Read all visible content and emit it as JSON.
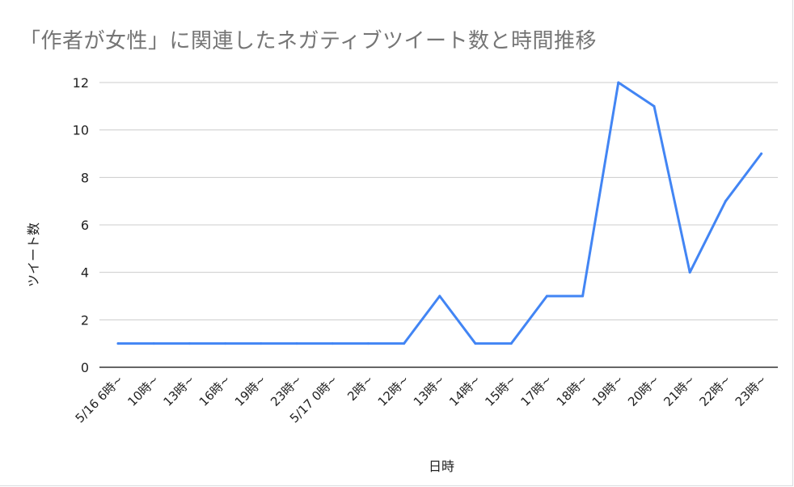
{
  "chart_data": {
    "type": "line",
    "title": "「作者が女性」に関連したネガティブツイート数と時間推移",
    "xlabel": "日時",
    "ylabel": "ツイート数",
    "ylim": [
      0,
      12
    ],
    "yticks": [
      "0",
      "2",
      "4",
      "6",
      "8",
      "10",
      "12"
    ],
    "grid": true,
    "categories": [
      "5/16 6時~",
      "10時~",
      "13時~",
      "16時~",
      "19時~",
      "23時~",
      "5/17 0時~",
      "2時~",
      "12時~",
      "13時~",
      "14時~",
      "15時~",
      "17時~",
      "18時~",
      "19時~",
      "20時~",
      "21時~",
      "22時~",
      "23時~"
    ],
    "series": [
      {
        "values": [
          1,
          1,
          1,
          1,
          1,
          1,
          1,
          1,
          1,
          3,
          1,
          1,
          3,
          3,
          12,
          11,
          4,
          7,
          9
        ]
      }
    ],
    "colors": {
      "line": "#4285f4",
      "grid": "#cccccc",
      "axis": "#333333",
      "title": "#757575"
    }
  }
}
